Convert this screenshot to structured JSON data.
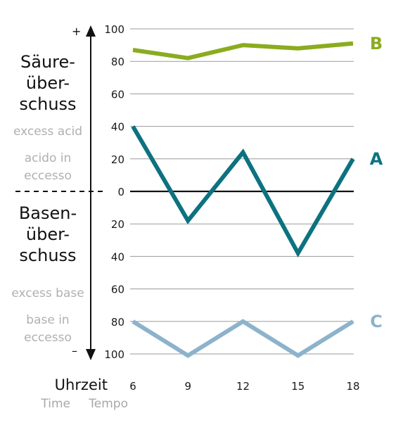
{
  "labels": {
    "plus": "+",
    "minus": "–",
    "acid": {
      "lines": [
        "Säure-",
        "über-",
        "schuss"
      ],
      "en": "excess acid",
      "it": [
        "acido in",
        "eccesso"
      ]
    },
    "base": {
      "lines": [
        "Basen-",
        "über-",
        "schuss"
      ],
      "en": "excess base",
      "it": [
        "base in",
        "eccesso"
      ]
    },
    "time": {
      "de": "Uhrzeit",
      "en": "Time",
      "it": "Tempo"
    }
  },
  "chart_data": {
    "type": "line",
    "x": [
      6,
      9,
      12,
      15,
      18
    ],
    "y_ticks": [
      100,
      80,
      60,
      40,
      20,
      0,
      20,
      40,
      60,
      80,
      100
    ],
    "y_tick_values": [
      100,
      80,
      60,
      40,
      20,
      0,
      -20,
      -40,
      -60,
      -80,
      -100
    ],
    "ylim": [
      -100,
      100
    ],
    "grid": true,
    "zero_line": true,
    "series": [
      {
        "name": "B",
        "color": "#8aac1e",
        "values": [
          87,
          82,
          90,
          88,
          91
        ]
      },
      {
        "name": "A",
        "color": "#0d7280",
        "values": [
          40,
          -18,
          24,
          -38,
          20
        ]
      },
      {
        "name": "C",
        "color": "#8db3cb",
        "values": [
          -80,
          -101,
          -80,
          -101,
          -80
        ]
      }
    ]
  }
}
